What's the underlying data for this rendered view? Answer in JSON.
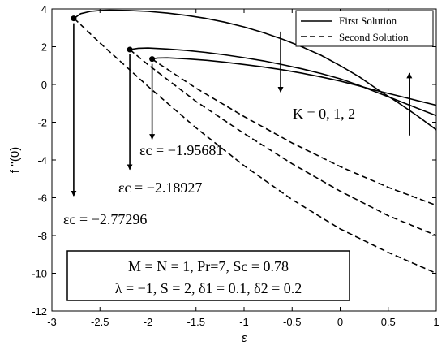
{
  "chart_data": {
    "type": "line",
    "xlabel": "ε",
    "ylabel": "f ''(0)",
    "xlim": [
      -3,
      1
    ],
    "ylim": [
      -12,
      4
    ],
    "xticks": [
      -3,
      -2.5,
      -2,
      -1.5,
      -1,
      -0.5,
      0,
      0.5,
      1
    ],
    "xtick_labels": [
      "-3",
      "-2.5",
      "-2",
      "-1.5",
      "-1",
      "-0.5",
      "0",
      "0.5",
      "1"
    ],
    "yticks": [
      -12,
      -10,
      -8,
      -6,
      -4,
      -2,
      0,
      2,
      4
    ],
    "ytick_labels": [
      "-12",
      "-10",
      "-8",
      "-6",
      "-4",
      "-2",
      "0",
      "2",
      "4"
    ],
    "grid": false,
    "legend_position": "top-right",
    "legend": [
      {
        "label": "First Solution",
        "style": "solid"
      },
      {
        "label": "Second Solution",
        "style": "dashed"
      }
    ],
    "series": [
      {
        "name": "First Solution",
        "style": "solid",
        "x": [
          -2.77,
          -2.7,
          -2.6,
          -2.5,
          -2.4,
          -2.2,
          -2.0,
          -1.8,
          -1.6,
          -1.4,
          -1.2,
          -1.0,
          -0.8,
          -0.6,
          -0.4,
          -0.2,
          0.0,
          0.2,
          0.4,
          0.6,
          0.8,
          1.0
        ],
        "y": [
          3.5,
          3.75,
          3.87,
          3.92,
          3.93,
          3.92,
          3.87,
          3.78,
          3.66,
          3.5,
          3.3,
          3.05,
          2.75,
          2.4,
          2.0,
          1.55,
          1.0,
          0.4,
          -0.3,
          -0.95,
          -1.65,
          -2.4
        ]
      },
      {
        "name": "First Solution",
        "style": "solid",
        "x": [
          -2.19,
          -2.1,
          -2.0,
          -1.8,
          -1.6,
          -1.4,
          -1.2,
          -1.0,
          -0.8,
          -0.6,
          -0.4,
          -0.2,
          0.0,
          0.2,
          0.4,
          0.6,
          0.8,
          1.0
        ],
        "y": [
          1.85,
          1.92,
          1.93,
          1.88,
          1.8,
          1.7,
          1.57,
          1.42,
          1.25,
          1.05,
          0.83,
          0.58,
          0.3,
          -0.05,
          -0.45,
          -0.85,
          -1.25,
          -1.65
        ]
      },
      {
        "name": "First Solution",
        "style": "solid",
        "x": [
          -1.96,
          -1.9,
          -1.8,
          -1.6,
          -1.4,
          -1.2,
          -1.0,
          -0.8,
          -0.6,
          -0.4,
          -0.2,
          0.0,
          0.2,
          0.4,
          0.6,
          0.8,
          1.0
        ],
        "y": [
          1.35,
          1.4,
          1.41,
          1.36,
          1.28,
          1.18,
          1.06,
          0.93,
          0.78,
          0.6,
          0.4,
          0.18,
          -0.08,
          -0.35,
          -0.6,
          -0.85,
          -1.1
        ]
      },
      {
        "name": "Second Solution",
        "style": "dashed",
        "x": [
          -2.77,
          -2.5,
          -2.0,
          -1.5,
          -1.0,
          -0.5,
          0.0,
          0.5,
          1.0
        ],
        "y": [
          3.5,
          2.2,
          -0.1,
          -2.3,
          -4.3,
          -6.1,
          -7.65,
          -8.9,
          -10.0
        ]
      },
      {
        "name": "Second Solution",
        "style": "dashed",
        "x": [
          -2.19,
          -2.0,
          -1.5,
          -1.0,
          -0.5,
          0.0,
          0.5,
          1.0
        ],
        "y": [
          1.85,
          1.05,
          -0.9,
          -2.6,
          -4.2,
          -5.65,
          -6.95,
          -8.0
        ]
      },
      {
        "name": "Second Solution",
        "style": "dashed",
        "x": [
          -1.96,
          -1.5,
          -1.0,
          -0.5,
          0.0,
          0.5,
          1.0
        ],
        "y": [
          1.35,
          -0.2,
          -1.7,
          -3.1,
          -4.35,
          -5.45,
          -6.4
        ]
      }
    ],
    "critical_points": [
      {
        "x": -2.77296,
        "y": 3.5,
        "label": "εc = −2.77296",
        "arrow_to_y": -5.9
      },
      {
        "x": -2.18927,
        "y": 1.85,
        "label": "εc = −2.18927",
        "arrow_to_y": -4.5
      },
      {
        "x": -1.95681,
        "y": 1.35,
        "label": "εc = −1.95681",
        "arrow_to_y": -2.9
      }
    ],
    "annotations": {
      "k_label": "K = 0, 1, 2",
      "k_arrow_down": {
        "x": -0.62,
        "from_y": 2.8,
        "to_y": -0.4
      },
      "k_arrow_up": {
        "x": 0.72,
        "from_y": -2.7,
        "to_y": 0.6
      },
      "params_line1": "M = N = 1, Pr=7, Sc = 0.78",
      "params_line2": "λ = −1, S = 2, δ1 = 0.1, δ2 = 0.2"
    }
  }
}
